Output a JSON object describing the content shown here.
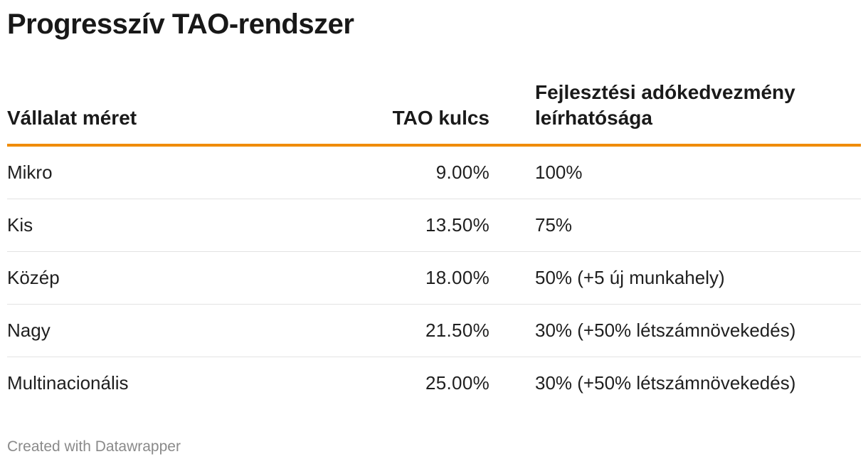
{
  "title": "Progresszív TAO-rendszer",
  "table": {
    "headers": {
      "size": "Vállalat méret",
      "rate": "TAO kulcs",
      "deduction": "Fejlesztési adókedvezmény leírhatósága"
    },
    "rows": [
      {
        "size": "Mikro",
        "rate": "9.00%",
        "deduction": "100%"
      },
      {
        "size": "Kis",
        "rate": "13.50%",
        "deduction": "75%"
      },
      {
        "size": "Közép",
        "rate": "18.00%",
        "deduction": "50% (+5 új munkahely)"
      },
      {
        "size": "Nagy",
        "rate": "21.50%",
        "deduction": "30% (+50% létszámnövekedés)"
      },
      {
        "size": "Multinacionális",
        "rate": "25.00%",
        "deduction": "30% (+50% létszámnövekedés)"
      }
    ]
  },
  "footer": "Created with Datawrapper",
  "colors": {
    "header_rule": "#f08c00",
    "row_divider": "#e3e3e3",
    "footer_text": "#8a8a8a"
  },
  "chart_data": {
    "type": "table",
    "title": "Progresszív TAO-rendszer",
    "columns": [
      "Vállalat méret",
      "TAO kulcs",
      "Fejlesztési adókedvezmény leírhatósága"
    ],
    "rows": [
      [
        "Mikro",
        "9.00%",
        "100%"
      ],
      [
        "Kis",
        "13.50%",
        "75%"
      ],
      [
        "Közép",
        "18.00%",
        "50% (+5 új munkahely)"
      ],
      [
        "Nagy",
        "21.50%",
        "30% (+50% létszámnövekedés)"
      ],
      [
        "Multinacionális",
        "25.00%",
        "30% (+50% létszámnövekedés)"
      ]
    ]
  }
}
